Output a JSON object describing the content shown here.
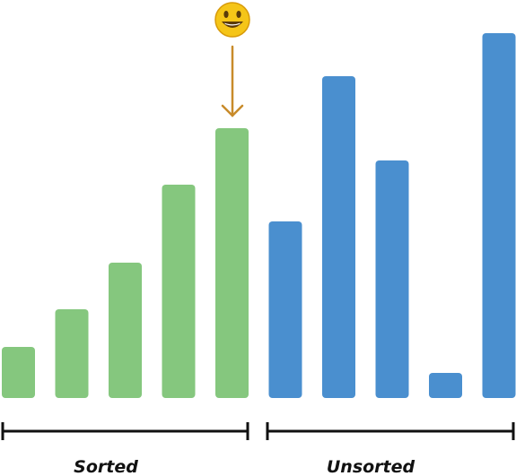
{
  "groups": [
    {
      "label": "Sorted",
      "color": "#85c77e",
      "values": [
        57,
        99,
        151,
        238,
        301
      ]
    },
    {
      "label": "Unsorted",
      "color": "#4a8fcf",
      "values": [
        197,
        359,
        265,
        28,
        407
      ]
    }
  ]
}
